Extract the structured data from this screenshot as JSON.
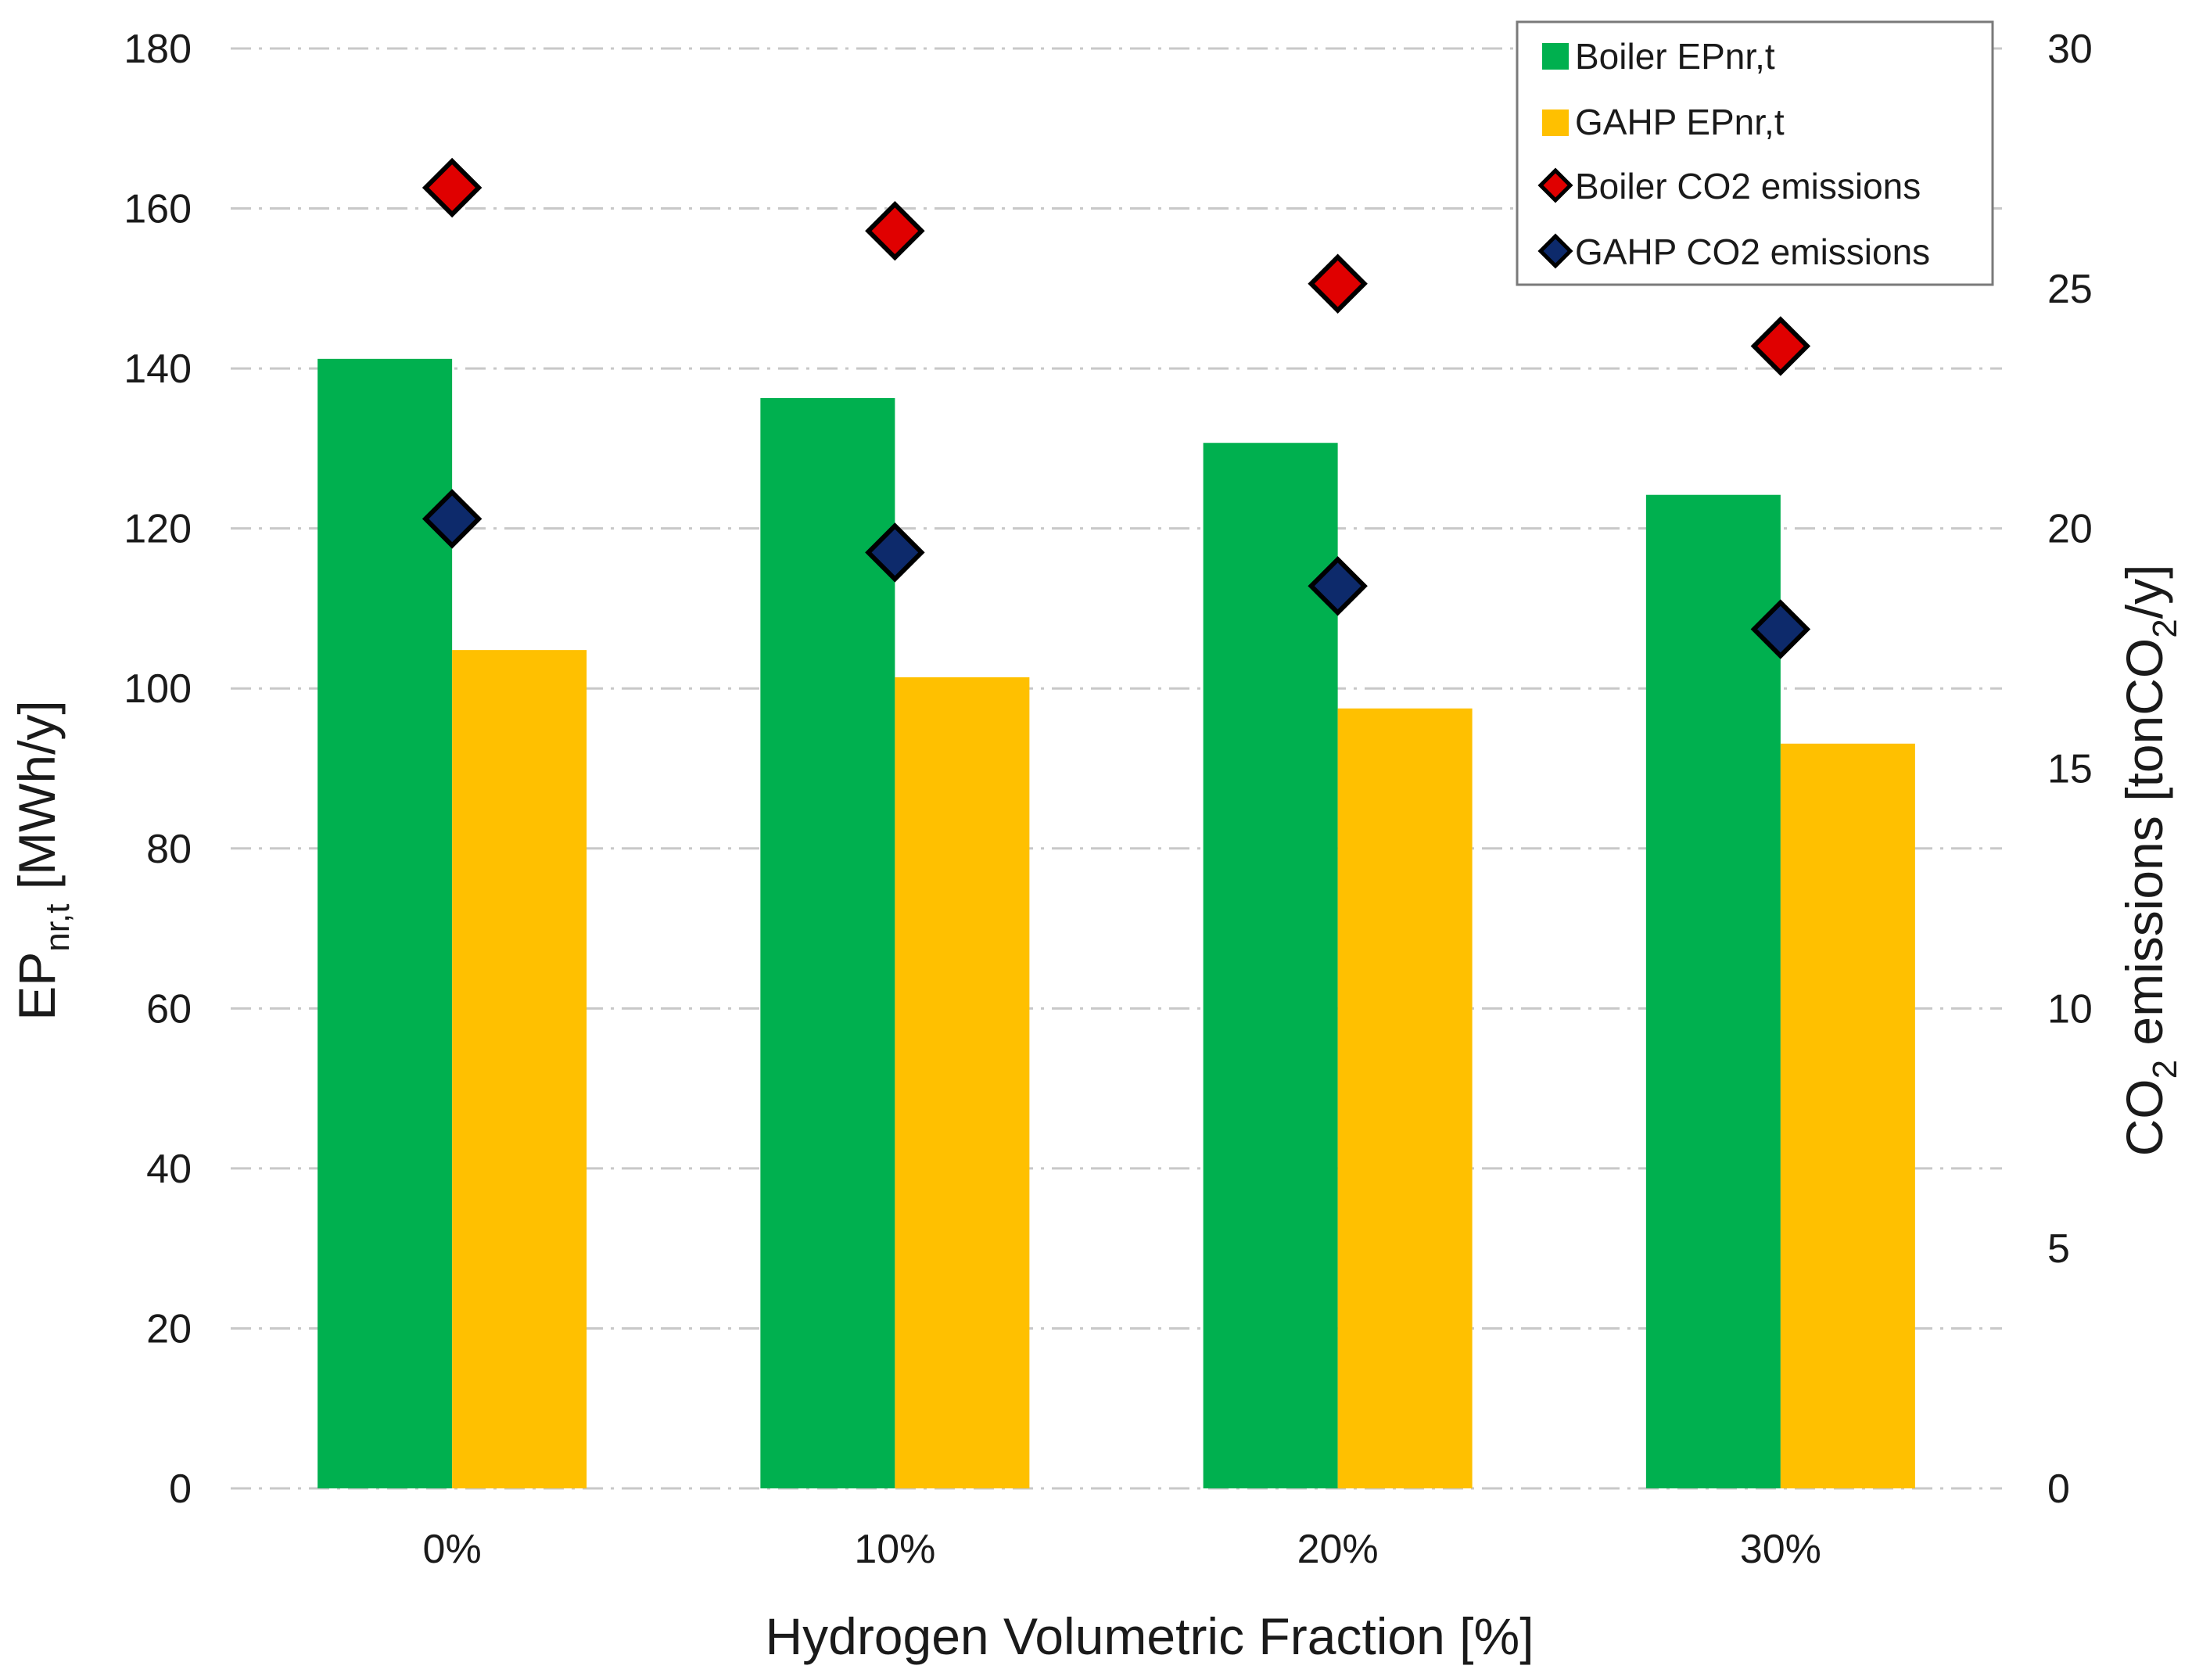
{
  "chart_data": {
    "type": "bar",
    "categories": [
      "0%",
      "10%",
      "20%",
      "30%"
    ],
    "series": [
      {
        "name": "Boiler EPnr,t",
        "kind": "bar",
        "axis": "left",
        "color": "#00b04f",
        "values": [
          141.2,
          136.3,
          130.7,
          124.2
        ]
      },
      {
        "name": "GAHP EPnr,t",
        "kind": "bar",
        "axis": "left",
        "color": "#ffc000",
        "values": [
          104.8,
          101.4,
          97.5,
          93.1
        ]
      },
      {
        "name": "Boiler CO2 emissions",
        "kind": "scatter",
        "marker": "diamond",
        "axis": "right",
        "color": "#e00000",
        "values": [
          27.1,
          26.2,
          25.1,
          23.8
        ]
      },
      {
        "name": "GAHP CO2 emissions",
        "kind": "scatter",
        "marker": "diamond",
        "axis": "right",
        "color": "#0d2a6b",
        "values": [
          20.2,
          19.5,
          18.8,
          17.9
        ]
      }
    ],
    "xlabel": "Hydrogen Volumetric Fraction [%]",
    "ylabel": {
      "main": "EP",
      "sub": "nr,t",
      "rest": " [MWh/y]"
    },
    "y2label": {
      "pre": "CO",
      "sub": "2",
      "mid": " emissions [tonCO",
      "sub2": "2",
      "post": "/y]"
    },
    "ylim": [
      0,
      180
    ],
    "yticks": [
      0,
      20,
      40,
      60,
      80,
      100,
      120,
      140,
      160,
      180
    ],
    "y2lim": [
      0,
      30
    ],
    "y2ticks": [
      0,
      5,
      10,
      15,
      20,
      25,
      30
    ],
    "grid": true,
    "legend_position": "top-right"
  }
}
